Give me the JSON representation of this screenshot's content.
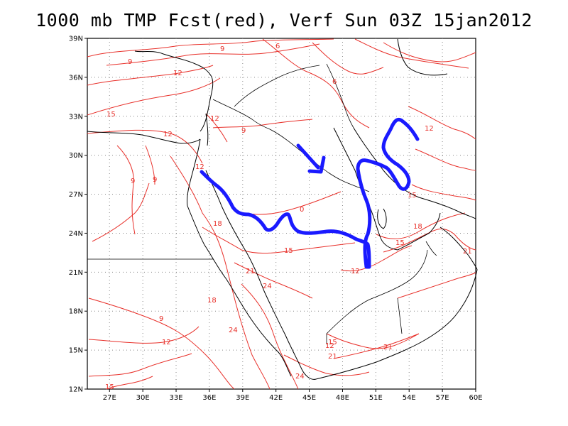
{
  "title": "1000 mb TMP Fcst(red), Verf Sun 03Z 15jan2012",
  "colors": {
    "contour": "#e8302a",
    "coastline": "#000000",
    "grid": "#888888",
    "annotation": "#1a1aff"
  },
  "map": {
    "lon_range": [
      25,
      60
    ],
    "lat_range": [
      12,
      39
    ],
    "lon_ticks": [
      "27E",
      "30E",
      "33E",
      "36E",
      "39E",
      "42E",
      "45E",
      "48E",
      "51E",
      "54E",
      "57E",
      "60E"
    ],
    "lat_ticks": [
      "39N",
      "36N",
      "33N",
      "30N",
      "27N",
      "24N",
      "21N",
      "18N",
      "15N",
      "12N"
    ],
    "grid": "dotted"
  },
  "contour_labels": [
    "9",
    "12",
    "6",
    "6",
    "15",
    "9",
    "12",
    "9",
    "12",
    "9",
    "12",
    "9",
    "0",
    "15",
    "18",
    "15",
    "21",
    "12",
    "21",
    "24",
    "18",
    "9",
    "12",
    "24",
    "15",
    "18",
    "21",
    "21",
    "24",
    "15",
    "12",
    "15",
    "12"
  ],
  "annotations": {
    "arrow": "arrow pointing southeast",
    "outline": "blue hand-drawn outline"
  }
}
